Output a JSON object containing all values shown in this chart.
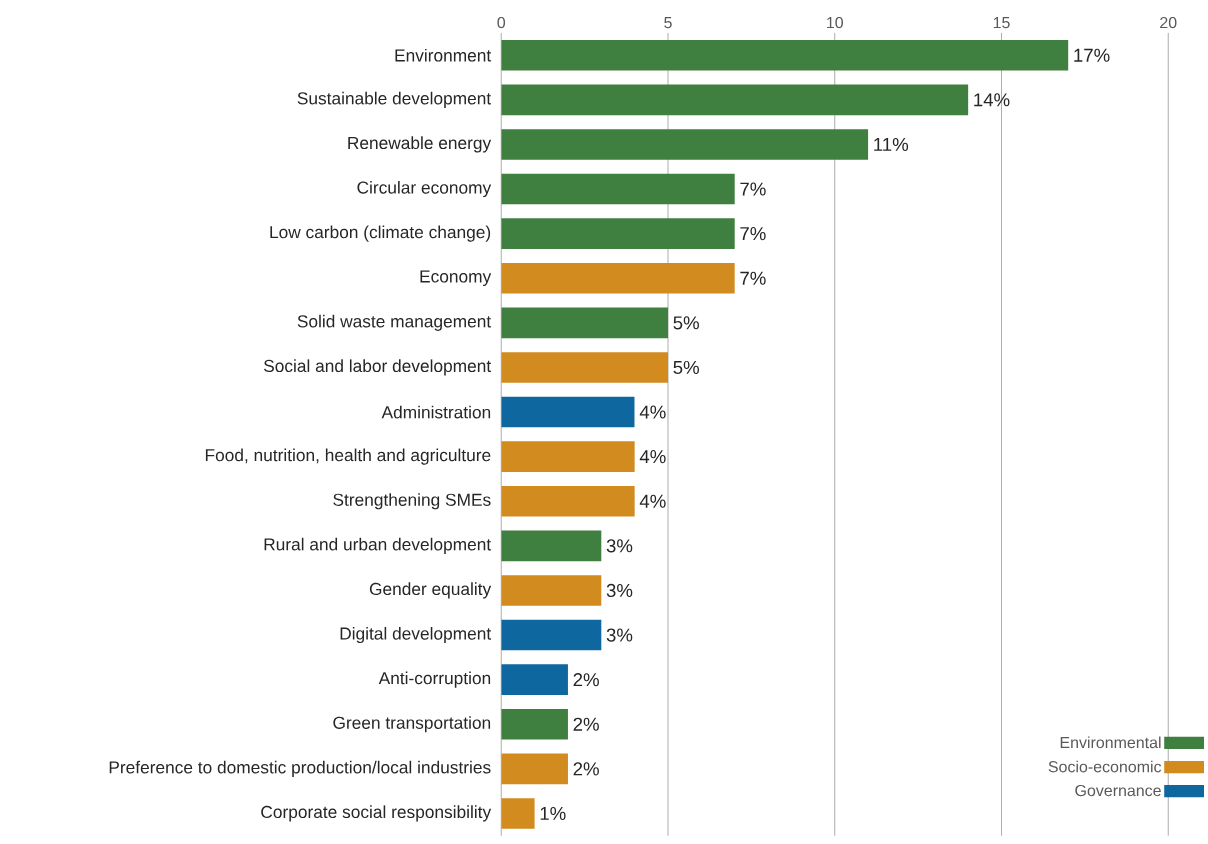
{
  "chart_data": {
    "type": "bar",
    "orientation": "horizontal",
    "categories": [
      "Environment",
      "Sustainable development",
      "Renewable energy",
      "Circular economy",
      "Low carbon (climate change)",
      "Economy",
      "Solid waste management",
      "Social and labor development",
      "Administration",
      "Food, nutrition, health and agriculture",
      "Strengthening SMEs",
      "Rural and urban development",
      "Gender equality",
      "Digital development",
      "Anti-corruption",
      "Green transportation",
      "Preference to domestic production/local industries",
      "Corporate social responsibility"
    ],
    "series": [
      {
        "name": "Environmental",
        "color": "#3f7f3f",
        "values": [
          17,
          14,
          11,
          7,
          7,
          null,
          5,
          null,
          null,
          null,
          null,
          3,
          null,
          null,
          null,
          2,
          null,
          null
        ],
        "value_labels": [
          "17%",
          "14%",
          "11%",
          "7%",
          "7%",
          null,
          "5%",
          null,
          null,
          null,
          null,
          "3%",
          null,
          null,
          null,
          "2%",
          null,
          null
        ]
      },
      {
        "name": "Socio-economic",
        "color": "#d18b1f",
        "values": [
          null,
          null,
          null,
          null,
          null,
          7,
          null,
          5,
          null,
          4,
          4,
          null,
          3,
          null,
          null,
          null,
          2,
          1
        ],
        "value_labels": [
          null,
          null,
          null,
          null,
          null,
          "7%",
          null,
          "5%",
          null,
          "4%",
          "4%",
          null,
          "3%",
          null,
          null,
          null,
          "2%",
          "1%"
        ]
      },
      {
        "name": "Governance",
        "color": "#0f67a0",
        "values": [
          null,
          null,
          null,
          null,
          null,
          null,
          null,
          null,
          4,
          null,
          null,
          null,
          null,
          3,
          2,
          null,
          null,
          null
        ],
        "value_labels": [
          null,
          null,
          null,
          null,
          null,
          null,
          null,
          null,
          "4%",
          null,
          null,
          null,
          null,
          "3%",
          "2%",
          null,
          null,
          null
        ]
      }
    ],
    "xlim": [
      0,
      20
    ],
    "xticks": [
      0,
      5,
      10,
      15,
      20
    ],
    "grid": "x",
    "legend": "bottom right"
  }
}
